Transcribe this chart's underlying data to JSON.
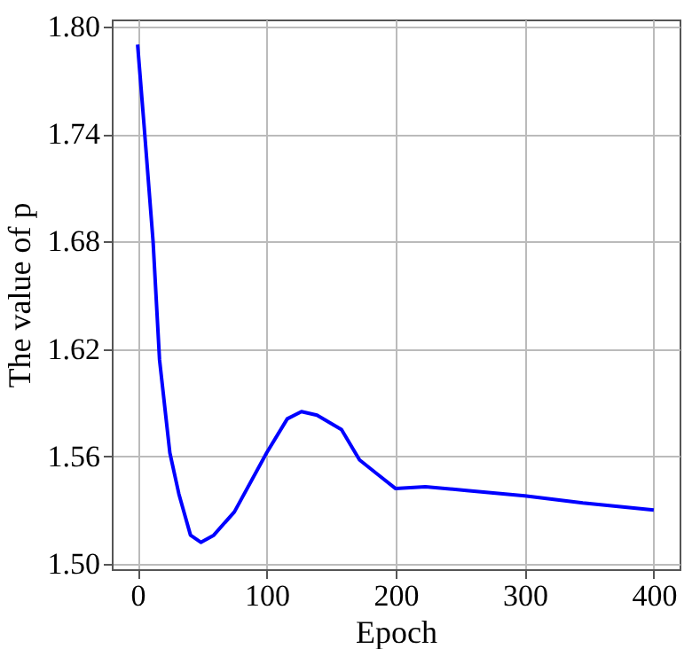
{
  "chart_data": {
    "type": "line",
    "xlabel": "Epoch",
    "ylabel": "The value of p",
    "x": [
      0,
      5,
      12,
      17,
      25,
      32,
      41,
      49,
      59,
      75,
      100,
      116,
      127,
      139,
      158,
      172,
      186,
      200,
      223,
      255,
      300,
      345,
      400
    ],
    "series": [
      {
        "color": "#0000ff",
        "values": [
          1.79,
          1.745,
          1.68,
          1.614,
          1.562,
          1.539,
          1.516,
          1.512,
          1.516,
          1.529,
          1.562,
          1.581,
          1.585,
          1.583,
          1.575,
          1.558,
          1.55,
          1.542,
          1.543,
          1.541,
          1.538,
          1.534,
          1.53
        ]
      }
    ],
    "xlim": [
      -20,
      420
    ],
    "xticks": [
      0,
      100,
      200,
      300,
      400
    ],
    "ylim": [
      1.497,
      1.804
    ],
    "yticks": [
      {
        "value": 1.5,
        "label": "1.50"
      },
      1.56,
      1.62,
      1.68,
      1.74,
      {
        "value": 1.8,
        "label": "1.80"
      }
    ],
    "grid": true,
    "marker": "none",
    "line_style": "solid"
  }
}
